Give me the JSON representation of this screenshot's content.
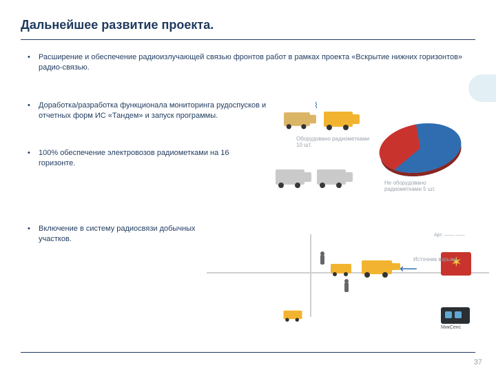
{
  "page": {
    "title": "Дальнейшее развитие проекта.",
    "page_number": "37",
    "colors": {
      "text": "#1f3a5f",
      "rule": "#1f3a5f",
      "accent_bg": "#cfe4ef",
      "muted": "#9aa3ad"
    }
  },
  "bullets": {
    "b1": "Расширение и обеспечение радиоизлучающей связью фронтов работ в рамках проекта «Вскрытие нижних горизонтов» радио-связью.",
    "b2": "Доработка/разработка функционала мониторинга рудоспусков и отчетных форм ИС «Тандем» и запуск программы.",
    "b3": "100% обеспечение электровозов радиометками на 16 горизонте.",
    "b4": "Включение в систему радиосвязи добычных участков."
  },
  "pie_chart": {
    "type": "pie",
    "slices": [
      {
        "label": "Оборудовано радиометками 10 шт.",
        "value": 67,
        "color": "#2f6db0"
      },
      {
        "label": "Не оборудовано радиометками 5 шт.",
        "value": 33,
        "color": "#c8342d"
      }
    ],
    "label1": "Оборудовано радиометками 10 шт.",
    "label2": "Не оборудовано радиометками 5 шт.",
    "background_color": "#ffffff",
    "tilt_deg": -10
  },
  "scene": {
    "vehicle_color": "#f2b430",
    "wheel_color": "#333333",
    "road_color": "#cfcfcf",
    "blast_color": "#c8342d",
    "blast_star": "#f5d040",
    "wifi_color": "#2f6db0",
    "arrow_color": "#2f6db0",
    "radio_box": "#2a2f33",
    "radio_led": "#5fa8d3",
    "note_text": "Источник взрыва",
    "radio_label": "МикСенс",
    "legend_text": "Арт.\n——\n——"
  }
}
